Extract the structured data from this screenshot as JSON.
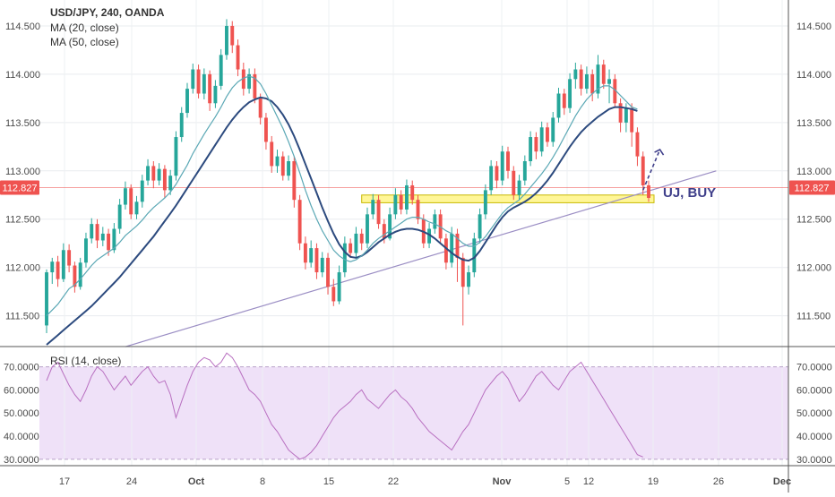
{
  "legend": {
    "symbol": "USD/JPY, 240, OANDA",
    "ma20": "MA (20, close)",
    "ma50": "MA (50, close)",
    "rsi": "RSI (14, close)"
  },
  "price_axis": {
    "ticks": [
      "114.500",
      "114.000",
      "113.500",
      "113.000",
      "112.500",
      "112.000",
      "111.500"
    ],
    "current_price": "112.827"
  },
  "rsi_axis": {
    "ticks": [
      "70.0000",
      "60.0000",
      "50.0000",
      "40.0000",
      "30.0000"
    ]
  },
  "time_axis": {
    "ticks": [
      "17",
      "24",
      "Oct",
      "8",
      "15",
      "22",
      "Nov",
      "5",
      "12",
      "19",
      "26",
      "Dec"
    ]
  },
  "annotation": {
    "label": "UJ, BUY"
  },
  "colors": {
    "up": "#26a69a",
    "down": "#ef5350",
    "ma20": "#5ba8b5",
    "ma50": "#2c4a7e",
    "rsi_line": "#b86fc0",
    "rsi_band": "#efe1f8",
    "support_zone": "#fff58c",
    "trendline": "#9b8ec4",
    "annotation": "#3f3f8a"
  },
  "chart_data": {
    "type": "candlestick",
    "symbol": "USD/JPY",
    "timeframe": "240",
    "source": "OANDA",
    "price_range": [
      111.2,
      114.75
    ],
    "rsi_range": [
      28,
      78
    ],
    "current_price": 112.827,
    "support_zone": [
      112.67,
      112.75
    ],
    "rsi_levels": [
      70,
      30
    ],
    "candles": [
      [
        111.4,
        111.95,
        111.32,
        111.98
      ],
      [
        111.95,
        112.06,
        111.83,
        112.1
      ],
      [
        112.06,
        111.88,
        111.8,
        112.12
      ],
      [
        111.88,
        112.18,
        111.85,
        112.25
      ],
      [
        112.18,
        112.02,
        111.95,
        112.24
      ],
      [
        112.02,
        111.8,
        111.74,
        112.06
      ],
      [
        111.8,
        112.05,
        111.77,
        112.1
      ],
      [
        112.05,
        112.3,
        112.0,
        112.36
      ],
      [
        112.3,
        112.45,
        112.25,
        112.51
      ],
      [
        112.45,
        112.28,
        112.2,
        112.5
      ],
      [
        112.28,
        112.35,
        112.22,
        112.42
      ],
      [
        112.35,
        112.18,
        112.12,
        112.4
      ],
      [
        112.18,
        112.4,
        112.15,
        112.46
      ],
      [
        112.4,
        112.65,
        112.35,
        112.71
      ],
      [
        112.65,
        112.82,
        112.6,
        112.89
      ],
      [
        112.82,
        112.55,
        112.5,
        112.86
      ],
      [
        112.55,
        112.68,
        112.5,
        112.74
      ],
      [
        112.68,
        112.9,
        112.62,
        112.96
      ],
      [
        112.9,
        113.05,
        112.85,
        113.12
      ],
      [
        113.05,
        112.9,
        112.82,
        113.1
      ],
      [
        112.9,
        113.02,
        112.85,
        113.08
      ],
      [
        113.02,
        112.8,
        112.72,
        113.06
      ],
      [
        112.8,
        112.95,
        112.75,
        113.01
      ],
      [
        112.95,
        113.35,
        112.9,
        113.41
      ],
      [
        113.35,
        113.6,
        113.3,
        113.66
      ],
      [
        113.6,
        113.85,
        113.55,
        113.91
      ],
      [
        113.85,
        114.05,
        113.8,
        114.11
      ],
      [
        114.05,
        113.8,
        113.75,
        114.1
      ],
      [
        113.8,
        114.0,
        113.74,
        114.06
      ],
      [
        114.0,
        113.7,
        113.62,
        114.04
      ],
      [
        113.7,
        113.88,
        113.65,
        113.94
      ],
      [
        113.88,
        114.2,
        113.84,
        114.26
      ],
      [
        114.2,
        114.5,
        114.15,
        114.57
      ],
      [
        114.5,
        114.3,
        114.22,
        114.55
      ],
      [
        114.3,
        114.05,
        113.98,
        114.36
      ],
      [
        114.05,
        113.85,
        113.78,
        114.12
      ],
      [
        113.85,
        114.0,
        113.8,
        114.06
      ],
      [
        114.0,
        113.75,
        113.7,
        114.06
      ],
      [
        113.75,
        113.55,
        113.48,
        113.8
      ],
      [
        113.55,
        113.3,
        113.22,
        113.6
      ],
      [
        113.3,
        113.05,
        112.98,
        113.36
      ],
      [
        113.05,
        113.15,
        112.98,
        113.22
      ],
      [
        113.15,
        112.95,
        112.9,
        113.2
      ],
      [
        112.95,
        113.1,
        112.9,
        113.16
      ],
      [
        113.1,
        112.7,
        112.62,
        113.15
      ],
      [
        112.7,
        112.25,
        112.18,
        112.75
      ],
      [
        112.25,
        112.05,
        111.98,
        112.32
      ],
      [
        112.05,
        112.2,
        112.0,
        112.28
      ],
      [
        112.2,
        111.95,
        111.88,
        112.25
      ],
      [
        111.95,
        112.1,
        111.9,
        112.16
      ],
      [
        112.1,
        111.8,
        111.72,
        112.15
      ],
      [
        111.8,
        111.65,
        111.6,
        111.88
      ],
      [
        111.65,
        111.95,
        111.62,
        112.02
      ],
      [
        111.95,
        112.25,
        111.9,
        112.32
      ],
      [
        112.25,
        112.15,
        112.1,
        112.3
      ],
      [
        112.15,
        112.35,
        112.1,
        112.42
      ],
      [
        112.35,
        112.25,
        112.18,
        112.4
      ],
      [
        112.25,
        112.55,
        112.2,
        112.62
      ],
      [
        112.55,
        112.7,
        112.5,
        112.76
      ],
      [
        112.7,
        112.45,
        112.4,
        112.75
      ],
      [
        112.45,
        112.3,
        112.25,
        112.5
      ],
      [
        112.3,
        112.55,
        112.28,
        112.62
      ],
      [
        112.55,
        112.75,
        112.5,
        112.82
      ],
      [
        112.75,
        112.6,
        112.55,
        112.8
      ],
      [
        112.6,
        112.85,
        112.55,
        112.91
      ],
      [
        112.85,
        112.7,
        112.65,
        112.9
      ],
      [
        112.7,
        112.5,
        112.45,
        112.75
      ],
      [
        112.5,
        112.25,
        112.2,
        112.55
      ],
      [
        112.25,
        112.4,
        112.2,
        112.46
      ],
      [
        112.4,
        112.55,
        112.35,
        112.6
      ],
      [
        112.55,
        112.3,
        112.25,
        112.6
      ],
      [
        112.3,
        112.05,
        111.98,
        112.35
      ],
      [
        112.05,
        112.35,
        112.0,
        112.42
      ],
      [
        112.35,
        112.1,
        111.85,
        112.4
      ],
      [
        112.1,
        111.8,
        111.4,
        112.15
      ],
      [
        111.8,
        111.95,
        111.72,
        112.02
      ],
      [
        111.95,
        112.3,
        111.9,
        112.36
      ],
      [
        112.3,
        112.55,
        112.25,
        112.61
      ],
      [
        112.55,
        112.8,
        112.5,
        112.86
      ],
      [
        112.8,
        113.05,
        112.75,
        113.11
      ],
      [
        113.05,
        112.9,
        112.82,
        113.1
      ],
      [
        112.9,
        113.2,
        112.85,
        113.26
      ],
      [
        113.2,
        113.0,
        112.92,
        113.25
      ],
      [
        113.0,
        112.75,
        112.7,
        113.05
      ],
      [
        112.75,
        112.9,
        112.7,
        112.96
      ],
      [
        112.9,
        113.1,
        112.85,
        113.16
      ],
      [
        113.1,
        113.35,
        113.05,
        113.41
      ],
      [
        113.35,
        113.2,
        113.12,
        113.4
      ],
      [
        113.2,
        113.45,
        113.15,
        113.51
      ],
      [
        113.45,
        113.3,
        113.25,
        113.5
      ],
      [
        113.3,
        113.55,
        113.25,
        113.61
      ],
      [
        113.55,
        113.8,
        113.5,
        113.86
      ],
      [
        113.8,
        113.65,
        113.58,
        113.85
      ],
      [
        113.65,
        113.95,
        113.6,
        114.01
      ],
      [
        113.95,
        114.05,
        113.85,
        114.12
      ],
      [
        114.05,
        113.85,
        113.78,
        114.1
      ],
      [
        113.85,
        114.0,
        113.8,
        114.08
      ],
      [
        114.0,
        113.8,
        113.72,
        114.05
      ],
      [
        113.8,
        114.1,
        113.75,
        114.2
      ],
      [
        114.1,
        113.9,
        113.85,
        114.15
      ],
      [
        113.9,
        113.95,
        113.7,
        114.05
      ],
      [
        113.95,
        113.7,
        113.65,
        114.0
      ],
      [
        113.7,
        113.5,
        113.4,
        113.75
      ],
      [
        113.5,
        113.65,
        113.4,
        113.7
      ],
      [
        113.65,
        113.4,
        113.25,
        113.7
      ],
      [
        113.4,
        113.15,
        113.05,
        113.45
      ],
      [
        113.15,
        112.85,
        112.75,
        113.2
      ],
      [
        112.85,
        112.72,
        112.68,
        112.9
      ]
    ],
    "ma20": [
      111.5,
      111.56,
      111.62,
      111.7,
      111.78,
      111.82,
      111.88,
      111.95,
      112.02,
      112.08,
      112.12,
      112.16,
      112.2,
      112.26,
      112.33,
      112.38,
      112.43,
      112.49,
      112.56,
      112.62,
      112.67,
      112.72,
      112.78,
      112.86,
      112.96,
      113.06,
      113.18,
      113.28,
      113.38,
      113.47,
      113.56,
      113.66,
      113.77,
      113.86,
      113.92,
      113.96,
      113.98,
      113.96,
      113.9,
      113.8,
      113.68,
      113.56,
      113.44,
      113.3,
      113.15,
      112.98,
      112.8,
      112.64,
      112.5,
      112.38,
      112.28,
      112.18,
      112.12,
      112.08,
      112.06,
      112.08,
      112.12,
      112.18,
      112.25,
      112.3,
      112.34,
      112.38,
      112.42,
      112.46,
      112.5,
      112.52,
      112.52,
      112.5,
      112.47,
      112.45,
      112.42,
      112.38,
      112.35,
      112.3,
      112.25,
      112.22,
      112.22,
      112.26,
      112.32,
      112.4,
      112.48,
      112.56,
      112.62,
      112.66,
      112.7,
      112.76,
      112.83,
      112.9,
      112.97,
      113.05,
      113.14,
      113.24,
      113.35,
      113.46,
      113.57,
      113.66,
      113.74,
      113.8,
      113.85,
      113.88,
      113.88,
      113.84,
      113.78,
      113.72,
      113.66,
      113.64
    ],
    "ma50": [
      111.2,
      111.25,
      111.3,
      111.35,
      111.4,
      111.45,
      111.5,
      111.55,
      111.6,
      111.66,
      111.72,
      111.78,
      111.84,
      111.9,
      111.97,
      112.04,
      112.11,
      112.18,
      112.25,
      112.32,
      112.4,
      112.48,
      112.56,
      112.64,
      112.73,
      112.82,
      112.91,
      113.0,
      113.09,
      113.18,
      113.27,
      113.36,
      113.45,
      113.53,
      113.6,
      113.66,
      113.71,
      113.74,
      113.76,
      113.75,
      113.72,
      113.66,
      113.58,
      113.48,
      113.36,
      113.22,
      113.07,
      112.92,
      112.77,
      112.62,
      112.48,
      112.35,
      112.24,
      112.16,
      112.11,
      112.1,
      112.12,
      112.16,
      112.21,
      112.26,
      112.3,
      112.34,
      112.37,
      112.39,
      112.4,
      112.4,
      112.39,
      112.37,
      112.34,
      112.3,
      112.25,
      112.2,
      112.15,
      112.11,
      112.08,
      112.07,
      112.1,
      112.17,
      112.26,
      112.35,
      112.44,
      112.52,
      112.58,
      112.62,
      112.65,
      112.68,
      112.72,
      112.77,
      112.83,
      112.9,
      112.98,
      113.07,
      113.16,
      113.25,
      113.33,
      113.4,
      113.46,
      113.51,
      113.56,
      113.6,
      113.64,
      113.66,
      113.66,
      113.65,
      113.64,
      113.62
    ],
    "rsi": [
      64,
      70,
      72,
      67,
      62,
      58,
      55,
      60,
      66,
      70,
      68,
      64,
      60,
      63,
      66,
      62,
      65,
      68,
      70,
      66,
      63,
      64,
      58,
      48,
      55,
      62,
      68,
      72,
      74,
      73,
      70,
      72,
      76,
      74,
      70,
      65,
      60,
      58,
      55,
      50,
      45,
      42,
      38,
      34,
      32,
      30,
      31,
      33,
      36,
      40,
      44,
      48,
      51,
      53,
      55,
      58,
      60,
      56,
      54,
      52,
      55,
      58,
      60,
      57,
      55,
      52,
      48,
      45,
      42,
      40,
      38,
      36,
      34,
      38,
      42,
      45,
      50,
      55,
      60,
      63,
      66,
      68,
      65,
      60,
      55,
      58,
      62,
      66,
      68,
      65,
      62,
      60,
      64,
      68,
      70,
      72,
      68,
      64,
      60,
      56,
      52,
      48,
      44,
      40,
      36,
      32,
      31
    ],
    "trendline": {
      "from": {
        "index": 14,
        "price": 111.18
      },
      "to": {
        "index": 119,
        "price": 113.0
      }
    },
    "forecast_arrow": {
      "from": {
        "index": 106,
        "price": 112.8
      },
      "to": {
        "index": 109,
        "price": 113.22
      }
    }
  }
}
